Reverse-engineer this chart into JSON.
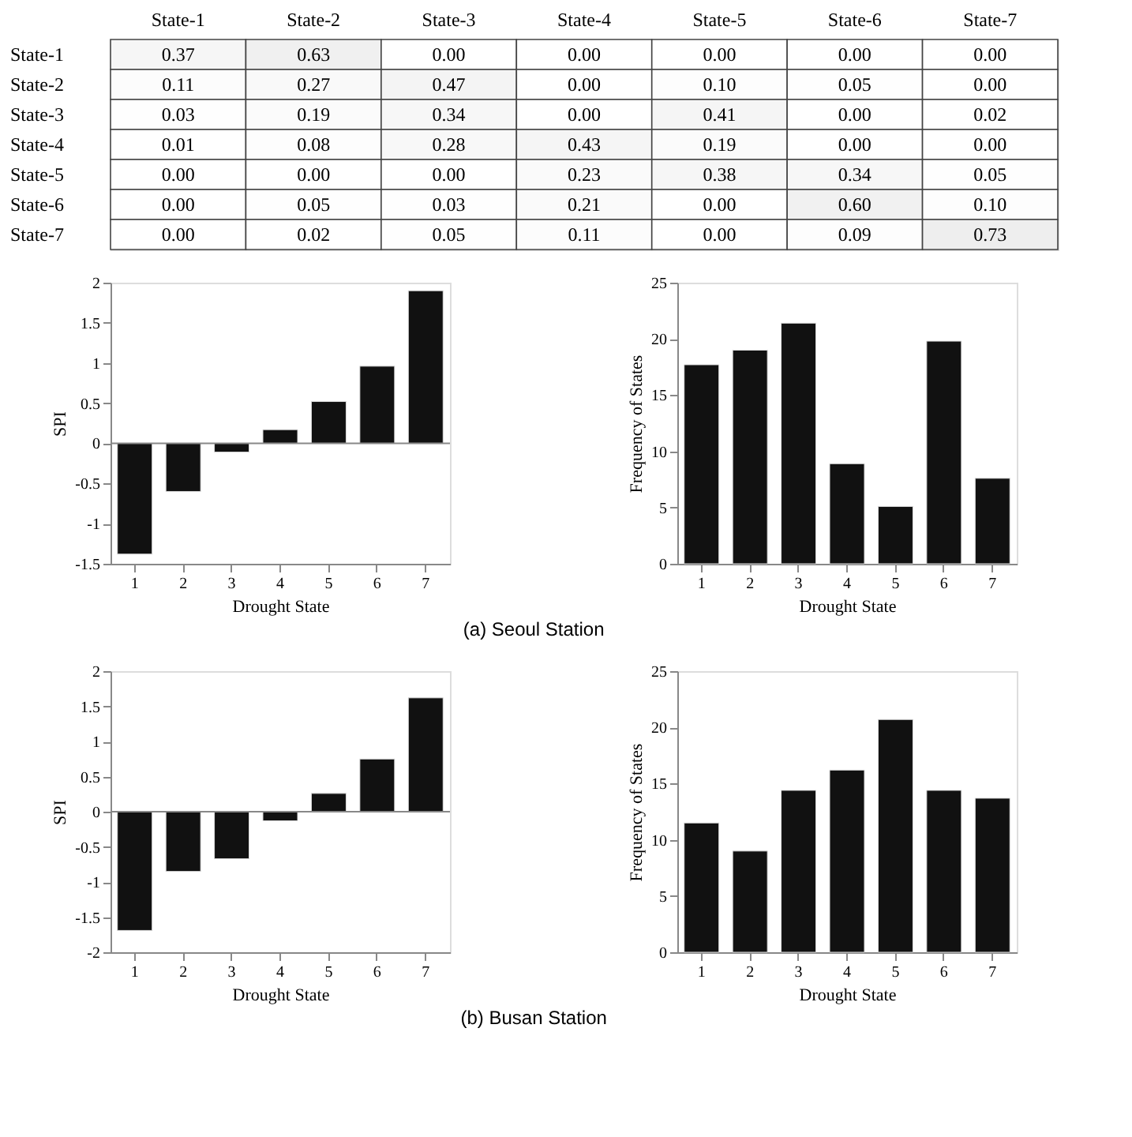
{
  "chart_data": [
    {
      "type": "heatmap",
      "categories": [
        "State-1",
        "State-2",
        "State-3",
        "State-4",
        "State-5",
        "State-6",
        "State-7"
      ],
      "y_categories": [
        "State-1",
        "State-2",
        "State-3",
        "State-4",
        "State-5",
        "State-6",
        "State-7"
      ],
      "cells": [
        [
          0.37,
          0.63,
          0.0,
          0.0,
          0.0,
          0.0,
          0.0
        ],
        [
          0.11,
          0.27,
          0.47,
          0.0,
          0.1,
          0.05,
          0.0
        ],
        [
          0.03,
          0.19,
          0.34,
          0.0,
          0.41,
          0.0,
          0.02
        ],
        [
          0.01,
          0.08,
          0.28,
          0.43,
          0.19,
          0.0,
          0.0
        ],
        [
          0.0,
          0.0,
          0.0,
          0.23,
          0.38,
          0.34,
          0.05
        ],
        [
          0.0,
          0.05,
          0.03,
          0.21,
          0.0,
          0.6,
          0.1
        ],
        [
          0.0,
          0.02,
          0.05,
          0.11,
          0.0,
          0.09,
          0.73
        ]
      ],
      "cell_labels": [
        [
          "0.37",
          "0.63",
          "0.00",
          "0.00",
          "0.00",
          "0.00",
          "0.00"
        ],
        [
          "0.11",
          "0.27",
          "0.47",
          "0.00",
          "0.10",
          "0.05",
          "0.00"
        ],
        [
          "0.03",
          "0.19",
          "0.34",
          "0.00",
          "0.41",
          "0.00",
          "0.02"
        ],
        [
          "0.01",
          "0.08",
          "0.28",
          "0.43",
          "0.19",
          "0.00",
          "0.00"
        ],
        [
          "0.00",
          "0.00",
          "0.00",
          "0.23",
          "0.38",
          "0.34",
          "0.05"
        ],
        [
          "0.00",
          "0.05",
          "0.03",
          "0.21",
          "0.00",
          "0.60",
          "0.10"
        ],
        [
          "0.00",
          "0.02",
          "0.05",
          "0.11",
          "0.00",
          "0.09",
          "0.73"
        ]
      ]
    },
    {
      "type": "bar",
      "categories": [
        "1",
        "2",
        "3",
        "4",
        "5",
        "6",
        "7"
      ],
      "values": [
        -1.38,
        -0.6,
        -0.11,
        0.17,
        0.52,
        0.96,
        1.9
      ],
      "color": "#111111",
      "xlabel": "Drought State",
      "ylabel": "SPI",
      "ylim": [
        -1.5,
        2
      ],
      "yticks": [
        -1.5,
        -1,
        -0.5,
        0,
        0.5,
        1,
        1.5,
        2
      ],
      "ref_lines": [
        {
          "axis": "y",
          "value": 0,
          "color": "#888888"
        }
      ],
      "grid": false,
      "annotations": [
        "(a) Seoul Station"
      ]
    },
    {
      "type": "bar",
      "categories": [
        "1",
        "2",
        "3",
        "4",
        "5",
        "6",
        "7"
      ],
      "values": [
        17.7,
        19.0,
        21.4,
        8.9,
        5.1,
        19.8,
        7.6
      ],
      "color": "#111111",
      "xlabel": "Drought State",
      "ylabel": "Frequency of States",
      "ylim": [
        0,
        25
      ],
      "yticks": [
        0,
        5,
        10,
        15,
        20,
        25
      ],
      "grid": false
    },
    {
      "type": "bar",
      "categories": [
        "1",
        "2",
        "3",
        "4",
        "5",
        "6",
        "7"
      ],
      "values": [
        -1.69,
        -0.85,
        -0.67,
        -0.13,
        0.26,
        0.75,
        1.62
      ],
      "color": "#111111",
      "xlabel": "Drought State",
      "ylabel": "SPI",
      "ylim": [
        -2,
        2
      ],
      "yticks": [
        -2,
        -1.5,
        -1,
        -0.5,
        0,
        0.5,
        1,
        1.5,
        2
      ],
      "ref_lines": [
        {
          "axis": "y",
          "value": 0,
          "color": "#888888"
        }
      ],
      "grid": false,
      "annotations": [
        "(b) Busan Station"
      ]
    },
    {
      "type": "bar",
      "categories": [
        "1",
        "2",
        "3",
        "4",
        "5",
        "6",
        "7"
      ],
      "values": [
        11.5,
        9.0,
        14.4,
        16.2,
        20.7,
        14.4,
        13.7
      ],
      "color": "#111111",
      "xlabel": "Drought State",
      "ylabel": "Frequency of States",
      "ylim": [
        0,
        25
      ],
      "yticks": [
        0,
        5,
        10,
        15,
        20,
        25
      ],
      "grid": false
    }
  ]
}
